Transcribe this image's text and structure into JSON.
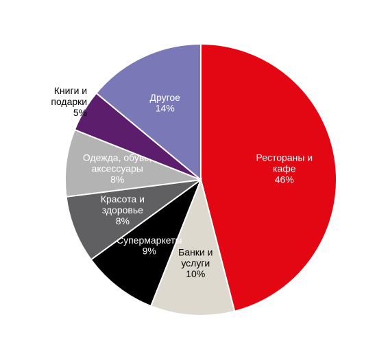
{
  "chart_data": {
    "type": "pie",
    "categories": [
      "Рестораны и\nкафе",
      "Банки и\nуслуги",
      "Супермаркеты",
      "Красота и\nздоровье",
      "Одежда, обувь,\nаксессуары",
      "Книги и\nподарки",
      "Другое"
    ],
    "values": [
      46,
      10,
      9,
      8,
      8,
      5,
      14
    ],
    "value_labels": [
      "46%",
      "10%",
      "9%",
      "8%",
      "8%",
      "5%",
      "14%"
    ],
    "colors": [
      "#e30613",
      "#ddd9ce",
      "#000000",
      "#606062",
      "#b3b3b3",
      "#5b1d6c",
      "#7b78b8"
    ]
  }
}
